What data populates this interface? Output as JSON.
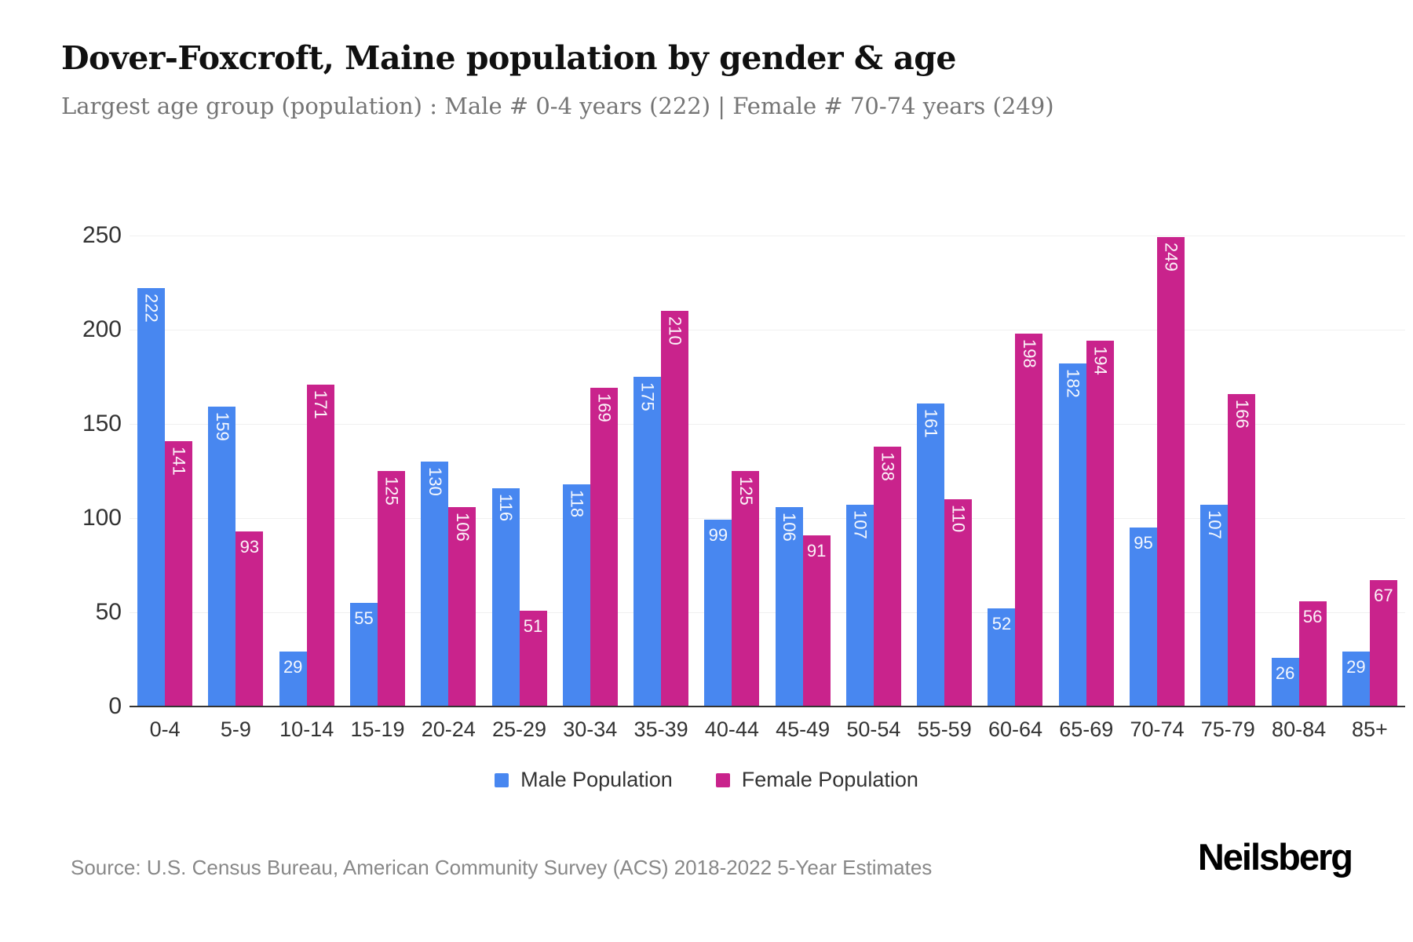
{
  "header": {
    "title": "Dover-Foxcroft, Maine population by gender & age",
    "subtitle": "Largest age group (population) : Male # 0-4 years (222) | Female # 70-74 years (249)"
  },
  "legend": [
    {
      "label": "Male Population",
      "color": "#4887f0"
    },
    {
      "label": "Female Population",
      "color": "#c9238c"
    }
  ],
  "footer": {
    "source": "Source: U.S. Census Bureau, American Community Survey (ACS) 2018-2022 5-Year Estimates",
    "brand": "Neilsberg"
  },
  "colors": {
    "male": "#4887f0",
    "female": "#c9238c",
    "gridline": "#f0f0f0",
    "axis": "#333333",
    "tick_text": "#333333",
    "bar_label_text": "#ffffff"
  },
  "chart_data": {
    "type": "bar",
    "title": "Dover-Foxcroft, Maine population by gender & age",
    "xlabel": "",
    "ylabel": "",
    "categories": [
      "0-4",
      "5-9",
      "10-14",
      "15-19",
      "20-24",
      "25-29",
      "30-34",
      "35-39",
      "40-44",
      "45-49",
      "50-54",
      "55-59",
      "60-64",
      "65-69",
      "70-74",
      "75-79",
      "80-84",
      "85+"
    ],
    "series": [
      {
        "name": "Male Population",
        "color": "#4887f0",
        "values": [
          222,
          159,
          29,
          55,
          130,
          116,
          118,
          175,
          99,
          106,
          107,
          161,
          52,
          182,
          95,
          107,
          26,
          29
        ]
      },
      {
        "name": "Female Population",
        "color": "#c9238c",
        "values": [
          141,
          93,
          171,
          125,
          106,
          51,
          169,
          210,
          125,
          91,
          138,
          110,
          198,
          194,
          249,
          166,
          56,
          67
        ]
      }
    ],
    "ylim": [
      0,
      250
    ],
    "yticks": [
      0,
      50,
      100,
      150,
      200,
      250
    ],
    "grid": true,
    "legend_position": "bottom",
    "bar_value_labels": "inside-top, white; 3-digit values rotated vertical"
  }
}
